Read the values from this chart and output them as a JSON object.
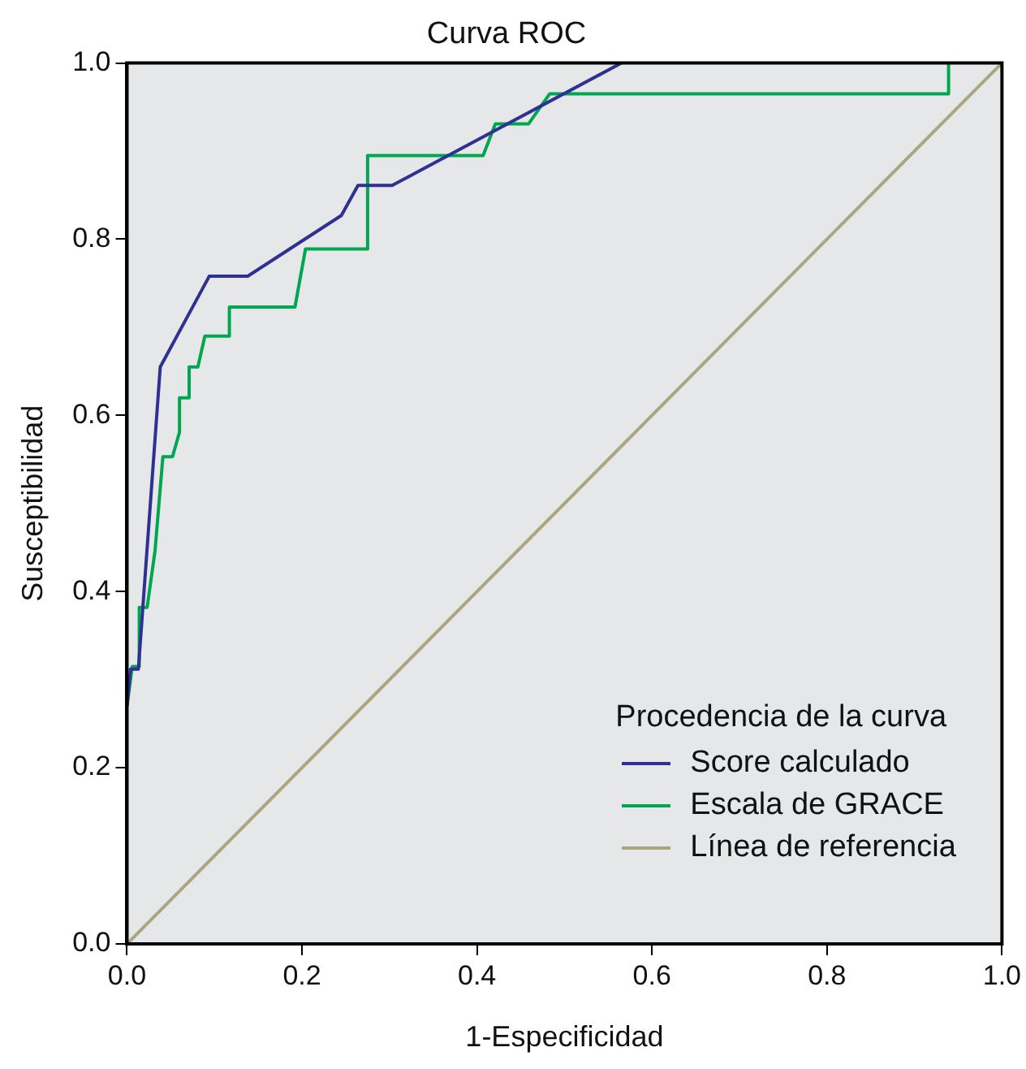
{
  "chart_data": {
    "type": "line",
    "title": "Curva ROC",
    "xlabel": "1-Especificidad",
    "ylabel": "Susceptibilidad",
    "legend_title": "Procedencia de la curva",
    "legend": "bottom right",
    "grid": false,
    "marker": "none",
    "line_style": "solid",
    "xlim": [
      0,
      1
    ],
    "ylim": [
      0,
      1
    ],
    "xticks": [
      {
        "value": 0,
        "label": "0.0"
      },
      {
        "value": 0.2,
        "label": "0.2"
      },
      {
        "value": 0.4,
        "label": "0.4"
      },
      {
        "value": 0.6,
        "label": "0.6"
      },
      {
        "value": 0.8,
        "label": "0.8"
      },
      {
        "value": 1,
        "label": "1.0"
      }
    ],
    "yticks": [
      {
        "value": 0,
        "label": "0.0"
      },
      {
        "value": 0.2,
        "label": "0.2"
      },
      {
        "value": 0.4,
        "label": "0.4"
      },
      {
        "value": 0.6,
        "label": "0.6"
      },
      {
        "value": 0.8,
        "label": "0.8"
      },
      {
        "value": 1,
        "label": "1.0"
      }
    ],
    "series": [
      {
        "name": "Score calculado",
        "color": "#2e3192",
        "x": [
          0,
          0.004,
          0.013,
          0.038,
          0.094,
          0.138,
          0.245,
          0.264,
          0.303,
          0.565
        ],
        "values": [
          0.27,
          0.312,
          0.312,
          0.655,
          0.758,
          0.758,
          0.827,
          0.861,
          0.861,
          1
        ]
      },
      {
        "name": "Escala de GRACE",
        "color": "#00a650",
        "x": [
          0,
          0.006,
          0.014,
          0.014,
          0.023,
          0.032,
          0.041,
          0.052,
          0.06,
          0.06,
          0.071,
          0.071,
          0.081,
          0.089,
          0.117,
          0.117,
          0.192,
          0.204,
          0.275,
          0.275,
          0.407,
          0.421,
          0.459,
          0.483,
          0.939,
          0.939
        ],
        "values": [
          0.27,
          0.315,
          0.315,
          0.382,
          0.382,
          0.446,
          0.553,
          0.553,
          0.581,
          0.62,
          0.62,
          0.655,
          0.655,
          0.69,
          0.69,
          0.723,
          0.723,
          0.789,
          0.789,
          0.895,
          0.895,
          0.931,
          0.931,
          0.965,
          0.965,
          1
        ]
      },
      {
        "name": "Línea de referencia",
        "color": "#aaa67f",
        "x": [
          0,
          1
        ],
        "values": [
          0,
          1
        ]
      }
    ]
  }
}
